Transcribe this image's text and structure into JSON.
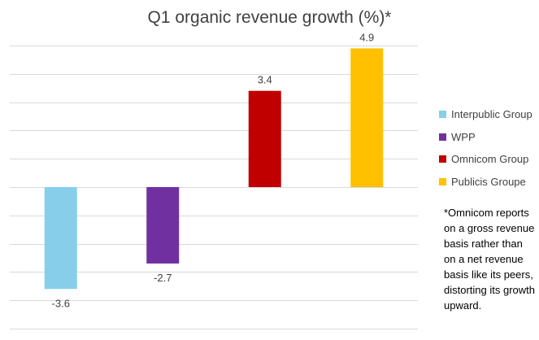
{
  "chart_data": {
    "type": "bar",
    "title": "Q1 organic revenue growth (%)*",
    "xlabel": "",
    "ylabel": "",
    "ylim": [
      -5,
      5
    ],
    "grid": true,
    "legend_position": "right",
    "categories": [
      "Interpublic Group",
      "WPP",
      "Omnicom Group",
      "Publicis Groupe"
    ],
    "values": [
      -3.6,
      -2.7,
      3.4,
      4.9
    ],
    "data_labels": [
      "-3.6",
      "-2.7",
      "3.4",
      "4.9"
    ],
    "colors": [
      "#87ceeb",
      "#7030a0",
      "#c00000",
      "#ffc000"
    ],
    "legend": [
      {
        "label": "Interpublic Group",
        "color": "#87ceeb"
      },
      {
        "label": "WPP",
        "color": "#7030a0"
      },
      {
        "label": "Omnicom Group",
        "color": "#c00000"
      },
      {
        "label": "Publicis Groupe",
        "color": "#ffc000"
      }
    ],
    "annotation": "*Omnicom reports on a gross revenue basis rather than on a net revenue basis like its peers, distorting its growth upward."
  }
}
